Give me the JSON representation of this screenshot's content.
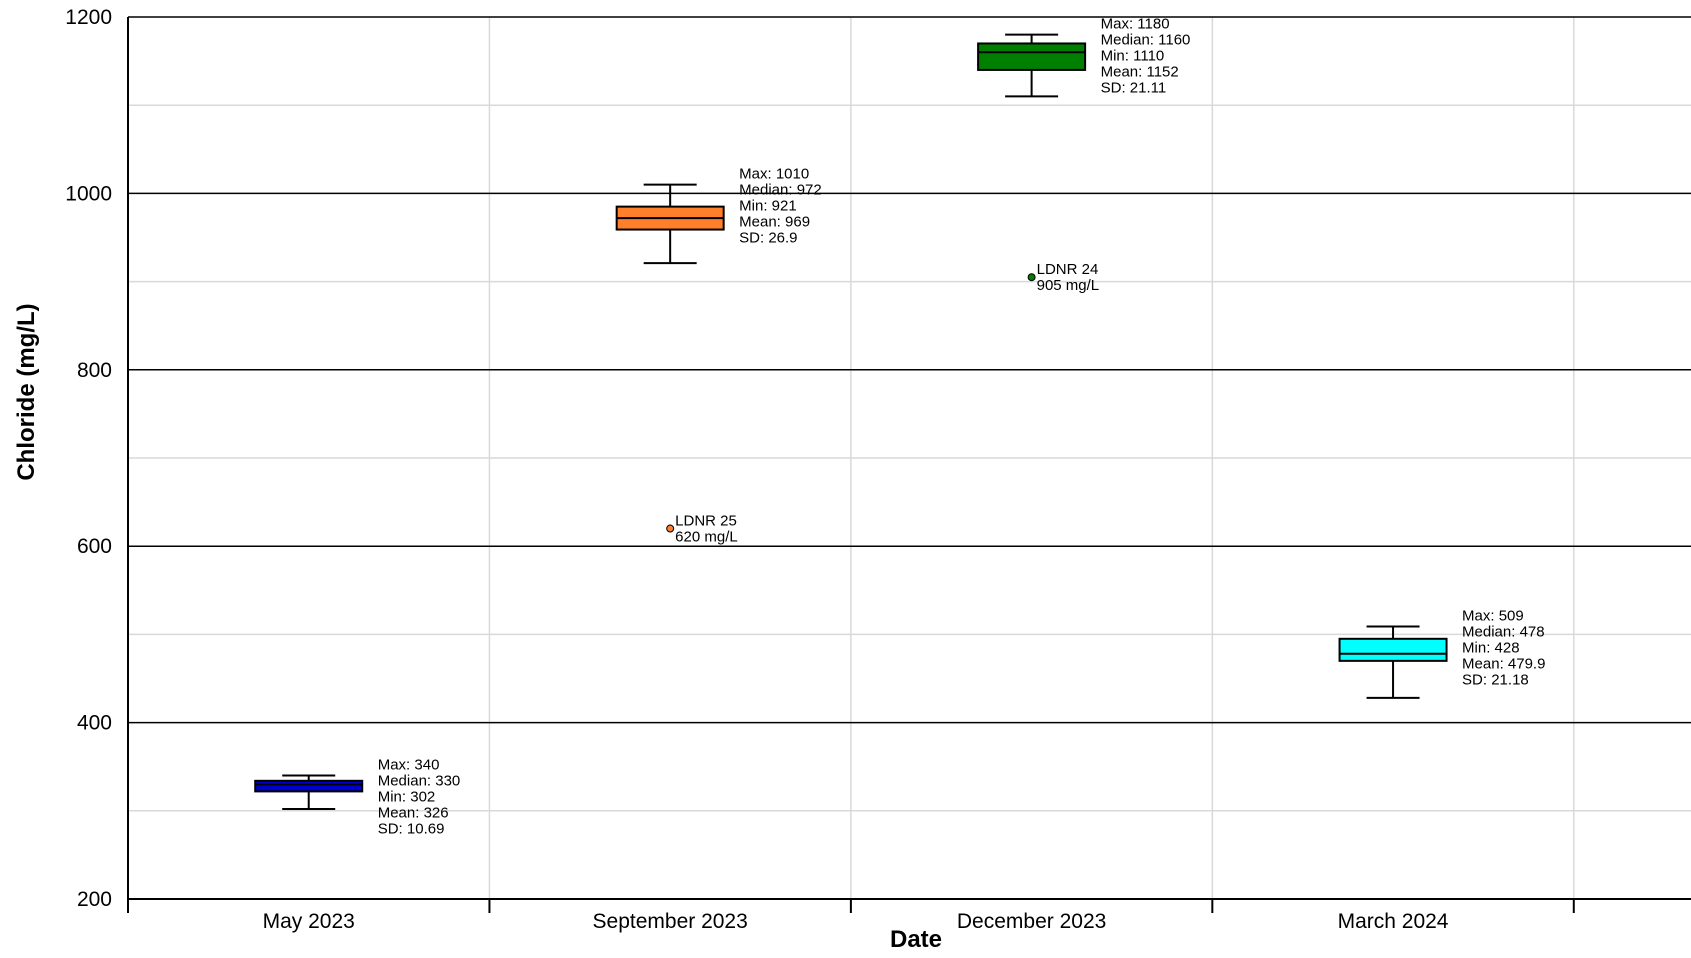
{
  "chart_data": {
    "type": "box",
    "title": "",
    "xlabel": "Date",
    "ylabel": "Chloride (mg/L)",
    "ylim": [
      200,
      1200
    ],
    "yticks": [
      200,
      400,
      600,
      800,
      1000,
      1200
    ],
    "grid": true,
    "categories": [
      "May 2023",
      "September 2023",
      "December 2023",
      "March 2024"
    ],
    "boxes": [
      {
        "category": "May 2023",
        "color": "#0000cc",
        "whisker_low": 302,
        "q1": 322,
        "median": 330,
        "q3": 334,
        "whisker_high": 340,
        "labels": [
          "Max: 340",
          "Median: 330",
          "Min: 302",
          "Mean: 326",
          "SD: 10.69"
        ]
      },
      {
        "category": "September 2023",
        "color": "#ff7f2a",
        "whisker_low": 921,
        "q1": 959,
        "median": 972,
        "q3": 985,
        "whisker_high": 1010,
        "labels": [
          "Max: 1010",
          "Median: 972",
          "Min: 921",
          "Mean: 969",
          "SD: 26.9"
        ]
      },
      {
        "category": "December 2023",
        "color": "#007f00",
        "whisker_low": 1110,
        "q1": 1140,
        "median": 1160,
        "q3": 1170,
        "whisker_high": 1180,
        "labels": [
          "Max: 1180",
          "Median: 1160",
          "Min: 1110",
          "Mean: 1152",
          "SD: 21.11"
        ]
      },
      {
        "category": "March 2024",
        "color": "#00ffff",
        "whisker_low": 428,
        "q1": 470,
        "median": 478,
        "q3": 495,
        "whisker_high": 509,
        "labels": [
          "Max: 509",
          "Median: 478",
          "Min: 428",
          "Mean: 479.9",
          "SD: 21.18"
        ]
      }
    ],
    "points": [
      {
        "category": "September 2023",
        "value": 620,
        "labels": [
          "LDNR 25",
          "620 mg/L"
        ]
      },
      {
        "category": "December 2023",
        "value": 905,
        "labels": [
          "LDNR 24",
          "905 mg/L"
        ]
      }
    ]
  }
}
